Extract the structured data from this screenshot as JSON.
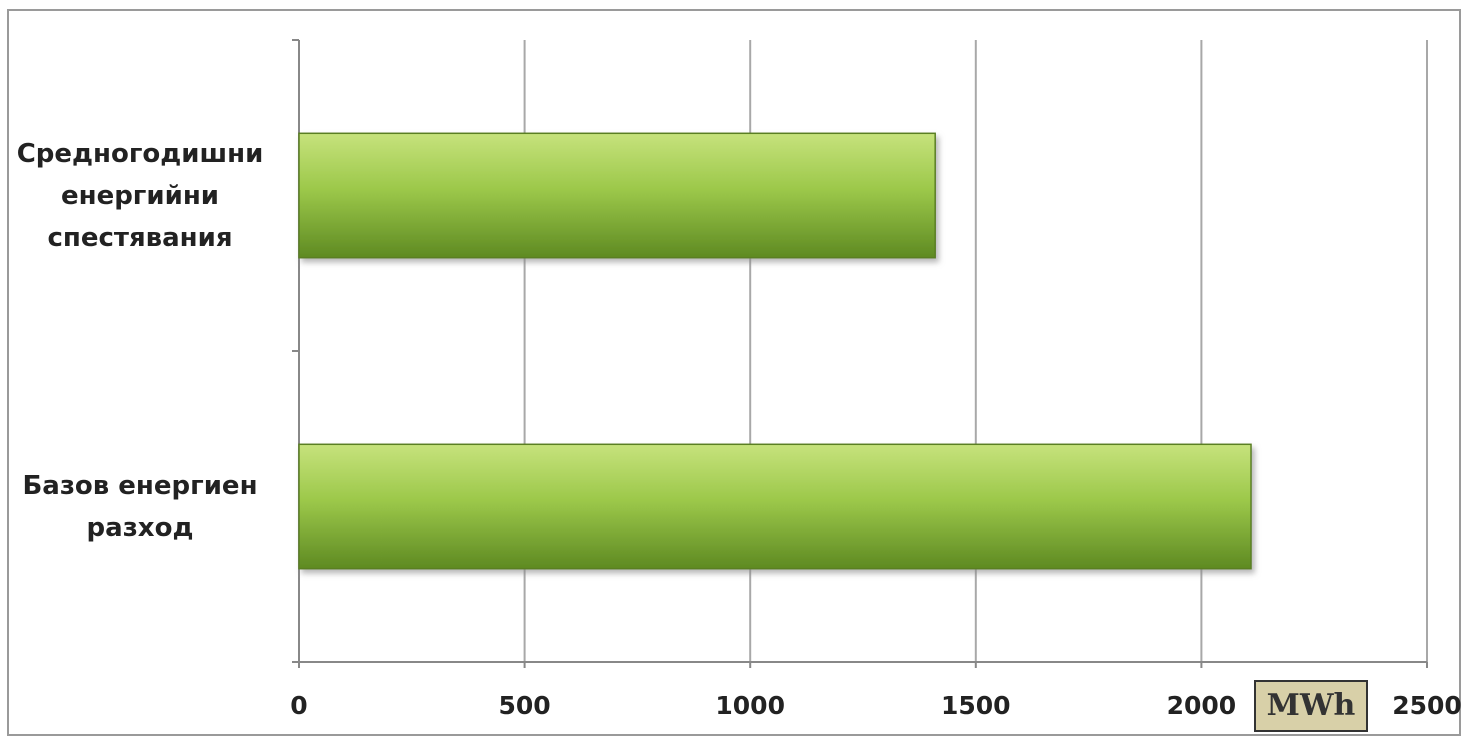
{
  "chart_data": {
    "type": "bar",
    "orientation": "horizontal",
    "categories": [
      "Средногодишни енергийни спестявания",
      "Базов енергиен разход"
    ],
    "category_lines": [
      [
        "Средногодишни",
        "енергийни",
        "спестявания"
      ],
      [
        "Базов енергиен",
        "разход"
      ]
    ],
    "values": [
      1410,
      2110
    ],
    "xlim": [
      0,
      2500
    ],
    "xticks": [
      "0",
      "500",
      "1000",
      "1500",
      "2000",
      "2500"
    ],
    "unit_label": "MWh",
    "grid": true,
    "bar_color": "#8cb83c"
  }
}
